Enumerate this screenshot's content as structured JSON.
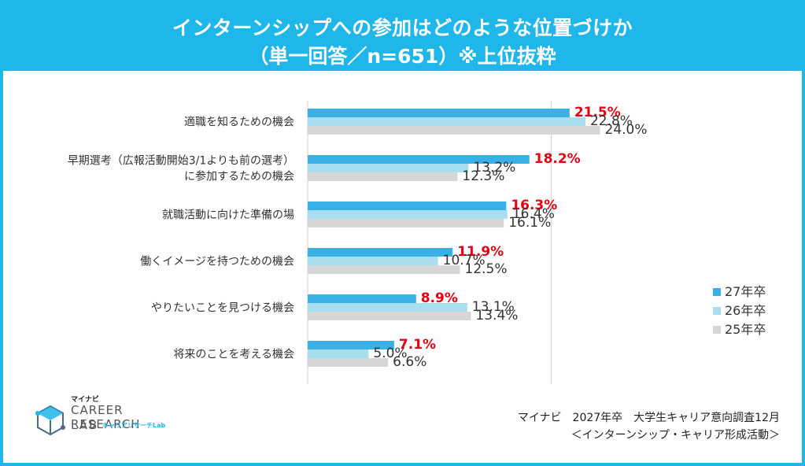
{
  "header": {
    "title_line1": "インターンシップへの参加はどのような位置づけか",
    "title_line2": "（単一回答／n=651）※上位抜粋"
  },
  "footer": {
    "source_line1": "マイナビ　2027年卒　大学生キャリア意向調査12月",
    "source_line2": "＜インターンシップ・キャリア形成活動＞",
    "logo_small": "マイナビ",
    "logo_main": "CAREER RESEARCH",
    "logo_lab": "LAB",
    "logo_kana": "キャリアリサーチLab"
  },
  "colors": {
    "banner": "#1fb6ea",
    "series_27": "#3bb0e4",
    "series_26": "#a9ddf0",
    "series_25": "#d6d6d6",
    "highlight_label": "#e60012"
  },
  "chart_data": {
    "type": "bar",
    "orientation": "horizontal",
    "categories": [
      [
        "適職を知るための機会"
      ],
      [
        "早期選考（広報活動開始3/1よりも前の選考）",
        "に参加するための機会"
      ],
      [
        "就職活動に向けた準備の場"
      ],
      [
        "働くイメージを持つための機会"
      ],
      [
        "やりたいことを見つける機会"
      ],
      [
        "将来のことを考える機会"
      ]
    ],
    "series": [
      {
        "name": "27年卒",
        "values": [
          21.5,
          18.2,
          16.3,
          11.9,
          8.9,
          7.1
        ],
        "labels": [
          "21.5%",
          "18.2%",
          "16.3%",
          "11.9%",
          "8.9%",
          "7.1%"
        ]
      },
      {
        "name": "26年卒",
        "values": [
          22.8,
          13.2,
          16.4,
          10.7,
          13.1,
          5.0
        ],
        "labels": [
          "22.8%",
          "13.2%",
          "16.4%",
          "10.7%",
          "13.1%",
          "5.0%"
        ]
      },
      {
        "name": "25年卒",
        "values": [
          24.0,
          12.3,
          16.1,
          12.5,
          13.4,
          6.6
        ],
        "labels": [
          "24.0%",
          "12.3%",
          "16.1%",
          "12.5%",
          "13.4%",
          "6.6%"
        ]
      }
    ],
    "highlight_series": "27年卒",
    "xlim": [
      0,
      35
    ],
    "grid_x": [
      0,
      20
    ],
    "legend": "right"
  }
}
